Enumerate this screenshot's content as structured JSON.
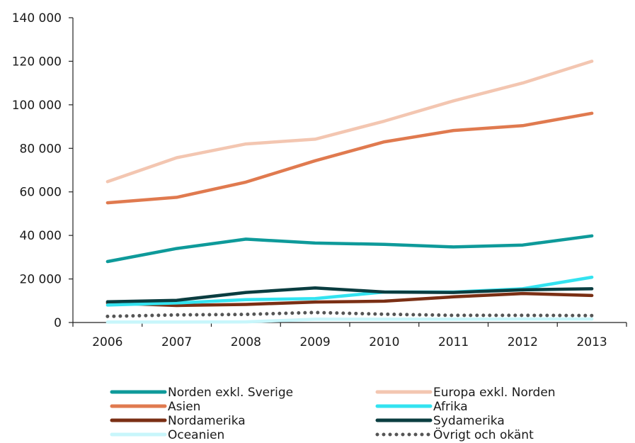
{
  "chart_data": {
    "type": "line",
    "title": "",
    "xlabel": "",
    "ylabel": "",
    "ylim": [
      0,
      140000
    ],
    "yticks": [
      0,
      20000,
      40000,
      60000,
      80000,
      100000,
      120000,
      140000
    ],
    "ytick_labels": [
      "0",
      "20 000",
      "40 000",
      "60 000",
      "80 000",
      "100 000",
      "120 000",
      "140 000"
    ],
    "x": [
      "2006",
      "2007",
      "2008",
      "2009",
      "2010",
      "2011",
      "2012",
      "2013"
    ],
    "grid": false,
    "legend_position": "bottom",
    "series": [
      {
        "name": "Norden exkl. Sverige",
        "color": "#0e9a9a",
        "style": "solid",
        "values": [
          28000,
          34000,
          38300,
          36500,
          35900,
          34700,
          35600,
          39800
        ]
      },
      {
        "name": "Europa exkl. Norden",
        "color": "#f3c6b1",
        "style": "solid",
        "values": [
          64700,
          75700,
          82000,
          84200,
          92500,
          101800,
          110000,
          120000
        ]
      },
      {
        "name": "Asien",
        "color": "#e07a4f",
        "style": "solid",
        "values": [
          55000,
          57500,
          64500,
          74300,
          83000,
          88200,
          90400,
          96100
        ]
      },
      {
        "name": "Afrika",
        "color": "#33e3f0",
        "style": "solid",
        "values": [
          8000,
          9000,
          10500,
          11000,
          14000,
          14000,
          15500,
          20800
        ]
      },
      {
        "name": "Nordamerika",
        "color": "#7a2f14",
        "style": "solid",
        "values": [
          9000,
          7800,
          8300,
          9400,
          9800,
          11800,
          13300,
          12400
        ]
      },
      {
        "name": "Sydamerika",
        "color": "#0a3d40",
        "style": "solid",
        "values": [
          9500,
          10200,
          13800,
          15900,
          14000,
          13800,
          15000,
          15500
        ]
      },
      {
        "name": "Oceanien",
        "color": "#c8f6fb",
        "style": "solid",
        "values": [
          200,
          200,
          300,
          1500,
          1500,
          1500,
          1600,
          1600
        ]
      },
      {
        "name": "Övrigt och okänt",
        "color": "#555555",
        "style": "dotted",
        "values": [
          2800,
          3500,
          3700,
          4600,
          3800,
          3300,
          3300,
          3200
        ]
      }
    ]
  }
}
